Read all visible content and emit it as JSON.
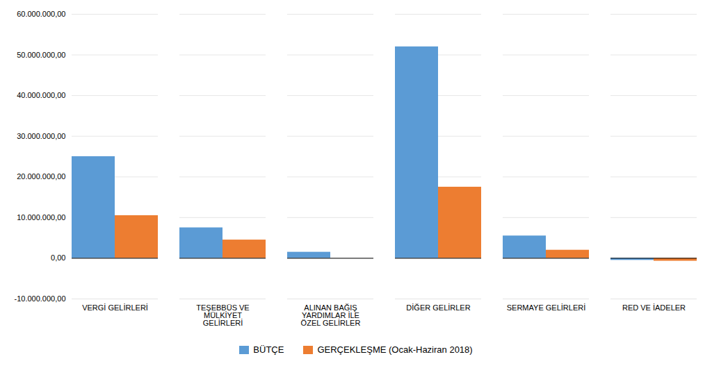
{
  "chart_data": {
    "type": "bar",
    "categories": [
      "VERGİ GELİRLERİ",
      "TEŞEBBÜS VE\nMÜLKİYET\nGELİRLERİ",
      "ALINAN BAĞIŞ\nYARDIMLAR İLE\nÖZEL GELİRLER",
      "DİĞER GELİRLER",
      "SERMAYE GELİRLERİ",
      "RED VE İADELER"
    ],
    "series": [
      {
        "name": "BÜTÇE",
        "color": "#5B9BD5",
        "values": [
          25000000,
          7500000,
          1500000,
          52000000,
          5500000,
          -500000
        ]
      },
      {
        "name": "GERÇEKLEŞME (Ocak-Haziran 2018)",
        "color": "#ED7D31",
        "values": [
          10500000,
          4500000,
          0,
          17500000,
          2000000,
          -700000
        ]
      }
    ],
    "ylim": [
      -10000000,
      60000000
    ],
    "yticks": [
      {
        "value": -10000000,
        "label": "-10.000.000,00"
      },
      {
        "value": 0,
        "label": "0,00"
      },
      {
        "value": 10000000,
        "label": "10.000.000,00"
      },
      {
        "value": 20000000,
        "label": "20.000.000,00"
      },
      {
        "value": 30000000,
        "label": "30.000.000,00"
      },
      {
        "value": 40000000,
        "label": "40.000.000,00"
      },
      {
        "value": 50000000,
        "label": "50.000.000,00"
      },
      {
        "value": 60000000,
        "label": "60.000.000,00"
      }
    ],
    "grid": true,
    "legend": "bottom"
  }
}
